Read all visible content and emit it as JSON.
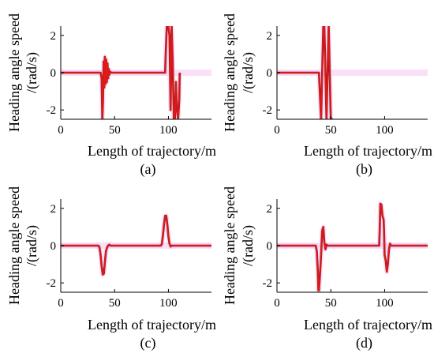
{
  "figure": {
    "background": "#ffffff",
    "line_color": "#e01919",
    "shadow_color": "#8b1a1a",
    "band_color": "#f5c6f0"
  },
  "chart_data": [
    {
      "type": "line",
      "panel": "(a)",
      "caption": "(a)",
      "xlabel": "Length of trajectory/m",
      "ylabel_lines": [
        "Heading angle speed",
        "/(rad/s)"
      ],
      "xlim": [
        0,
        140
      ],
      "ylim": [
        -2.5,
        2.5
      ],
      "xticks": [
        "0",
        "50",
        "100"
      ],
      "yticks": [
        "2",
        "0",
        "-2"
      ],
      "grid": false,
      "series": [
        {
          "x": [
            0,
            37,
            38,
            38.6,
            39.2,
            39.8,
            40.4,
            41,
            41.6,
            42.2,
            42.8,
            43.4,
            44,
            44.6,
            45.2,
            45.8,
            47,
            97,
            97.5,
            98.5,
            99,
            100,
            101,
            102,
            103,
            104,
            105,
            106,
            107,
            108,
            109,
            110,
            110.5
          ],
          "y": [
            0,
            0,
            -0.3,
            -2.5,
            -1.5,
            0.6,
            -0.8,
            0.85,
            -0.6,
            0.7,
            -0.5,
            0.5,
            -0.3,
            0.2,
            -0.1,
            0.05,
            0,
            0,
            1.0,
            2.5,
            2.5,
            2.5,
            2.0,
            -2.0,
            2.5,
            0.5,
            -2.5,
            -2.5,
            -0.5,
            -2.0,
            -2.5,
            -1.5,
            0
          ]
        }
      ]
    },
    {
      "type": "line",
      "panel": "(b)",
      "caption": "(b)",
      "xlabel": "Length of trajectory/m",
      "ylabel_lines": [
        "Heading angle speed",
        "/(rad/s)"
      ],
      "xlim": [
        0,
        140
      ],
      "ylim": [
        -2.5,
        2.5
      ],
      "xticks": [
        "0",
        "50",
        "100"
      ],
      "yticks": [
        "2",
        "0",
        "-2"
      ],
      "grid": false,
      "series": [
        {
          "x": [
            0,
            39,
            41,
            43,
            44,
            46,
            48,
            50,
            52
          ],
          "y": [
            0,
            0,
            -2.5,
            2.5,
            2.5,
            -2.5,
            2.5,
            -2.5,
            -2.5
          ]
        }
      ]
    },
    {
      "type": "line",
      "panel": "(c)",
      "caption": "(c)",
      "xlabel": "Length of trajectory/m",
      "ylabel_lines": [
        "Heading angle speed",
        "/(rad/s)"
      ],
      "xlim": [
        0,
        140
      ],
      "ylim": [
        -2.5,
        2.5
      ],
      "xticks": [
        "0",
        "50",
        "100"
      ],
      "yticks": [
        "2",
        "0",
        "-2"
      ],
      "grid": false,
      "series": [
        {
          "x": [
            0,
            35,
            36,
            37,
            38,
            39,
            40,
            41,
            42,
            43,
            44,
            45,
            46,
            93,
            94,
            95,
            96,
            97,
            98,
            99,
            100,
            101,
            102,
            103,
            140
          ],
          "y": [
            0,
            0,
            -0.1,
            -0.5,
            -1.1,
            -1.55,
            -1.5,
            -0.9,
            -0.3,
            -0.1,
            0,
            0.05,
            0,
            0,
            0.1,
            0.6,
            1.2,
            1.6,
            1.6,
            1.1,
            0.5,
            0.1,
            -0.05,
            0,
            0
          ]
        }
      ]
    },
    {
      "type": "line",
      "panel": "(d)",
      "caption": "(d)",
      "xlabel": "Length of trajectory/m",
      "ylabel_lines": [
        "Heading angle speed",
        "/(rad/s)"
      ],
      "xlim": [
        0,
        140
      ],
      "ylim": [
        -2.5,
        2.5
      ],
      "xticks": [
        "0",
        "50",
        "100"
      ],
      "yticks": [
        "2",
        "0",
        "-2"
      ],
      "grid": false,
      "series": [
        {
          "x": [
            0,
            36,
            37,
            38,
            38.5,
            39,
            40,
            41,
            42,
            43,
            44,
            45,
            46,
            47,
            95,
            95.5,
            96,
            97,
            98,
            99,
            99.5,
            100,
            101,
            102,
            103,
            104,
            105,
            106,
            140
          ],
          "y": [
            0,
            0,
            -0.3,
            -1.4,
            -2.4,
            -2.4,
            -1.5,
            -0.5,
            0.8,
            1.0,
            0.2,
            -0.2,
            0.05,
            0,
            0,
            1.0,
            2.25,
            2.2,
            1.6,
            1.4,
            0.8,
            -0.5,
            -0.8,
            -1.4,
            -1.0,
            -0.2,
            0.1,
            0,
            0
          ]
        }
      ]
    }
  ]
}
